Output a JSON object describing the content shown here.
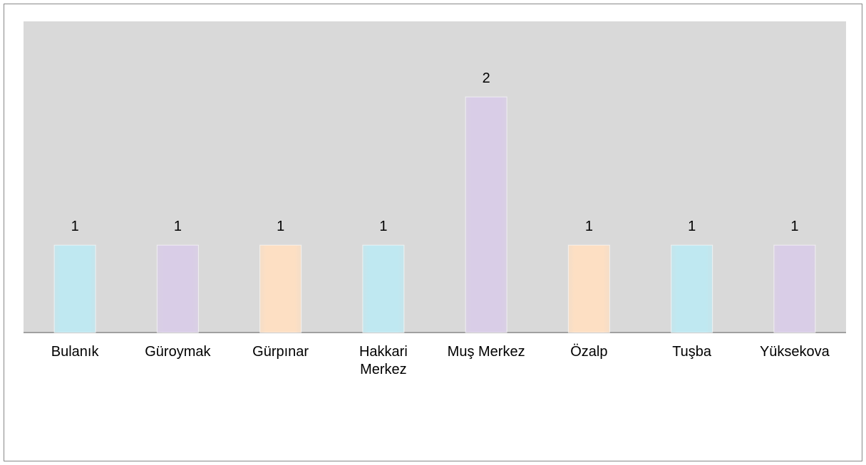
{
  "chart_data": {
    "type": "bar",
    "categories": [
      "Bulanık",
      "Güroymak",
      "Gürpınar",
      "Hakkari Merkez",
      "Muş Merkez",
      "Özalp",
      "Tuşba",
      "Yüksekova"
    ],
    "values": [
      1,
      1,
      1,
      1,
      2,
      1,
      1,
      1
    ],
    "colors": [
      "#bfe8f1",
      "#d9cde7",
      "#fddfc3",
      "#bfe8f1",
      "#d9cde7",
      "#fddfc3",
      "#bfe8f1",
      "#d9cde7"
    ],
    "ylim": [
      0.41,
      2.51
    ],
    "grid": false
  }
}
